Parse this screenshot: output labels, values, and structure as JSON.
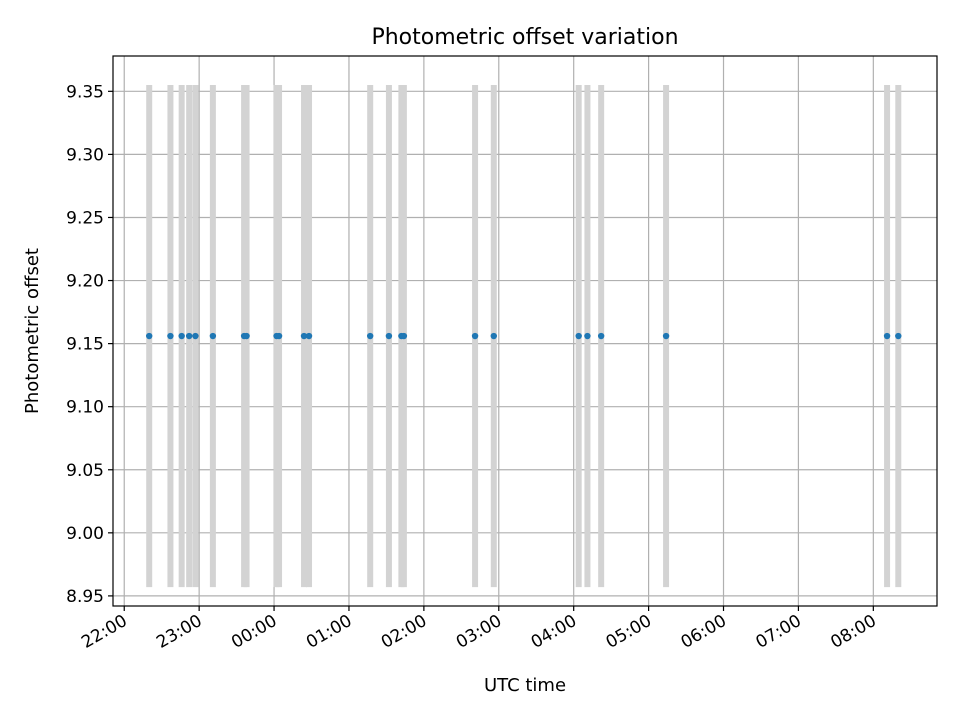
{
  "chart_data": {
    "type": "scatter",
    "title": "Photometric offset variation",
    "xlabel": "UTC time",
    "ylabel": "Photometric offset",
    "x_ticks": [
      "22:00",
      "23:00",
      "00:00",
      "01:00",
      "02:00",
      "03:00",
      "04:00",
      "05:00",
      "06:00",
      "07:00",
      "08:00"
    ],
    "y_ticks": [
      "8.95",
      "9.00",
      "9.05",
      "9.10",
      "9.15",
      "9.20",
      "9.25",
      "9.30",
      "9.35"
    ],
    "xlim": [
      "21:51",
      "08:51"
    ],
    "ylim": [
      8.942,
      9.378
    ],
    "grid": true,
    "colors": {
      "points": "#1f77b4",
      "error_bars": "#d3d3d3",
      "grid": "#b0b0b0"
    },
    "error_bar": {
      "low": 8.957,
      "high": 9.355
    },
    "series": [
      {
        "x": [
          "22:20",
          "22:37",
          "22:46",
          "22:52",
          "22:57",
          "23:11",
          "23:36",
          "23:38",
          "24:02",
          "24:04",
          "24:24",
          "24:28",
          "25:17",
          "25:32",
          "25:42",
          "25:44",
          "26:41",
          "26:56",
          "28:04",
          "28:11",
          "28:22",
          "29:14",
          "32:11",
          "32:20"
        ],
        "y": [
          9.156,
          9.156,
          9.156,
          9.156,
          9.156,
          9.156,
          9.156,
          9.156,
          9.156,
          9.156,
          9.156,
          9.156,
          9.156,
          9.156,
          9.156,
          9.156,
          9.156,
          9.156,
          9.156,
          9.156,
          9.156,
          9.156,
          9.156,
          9.156
        ]
      }
    ]
  }
}
